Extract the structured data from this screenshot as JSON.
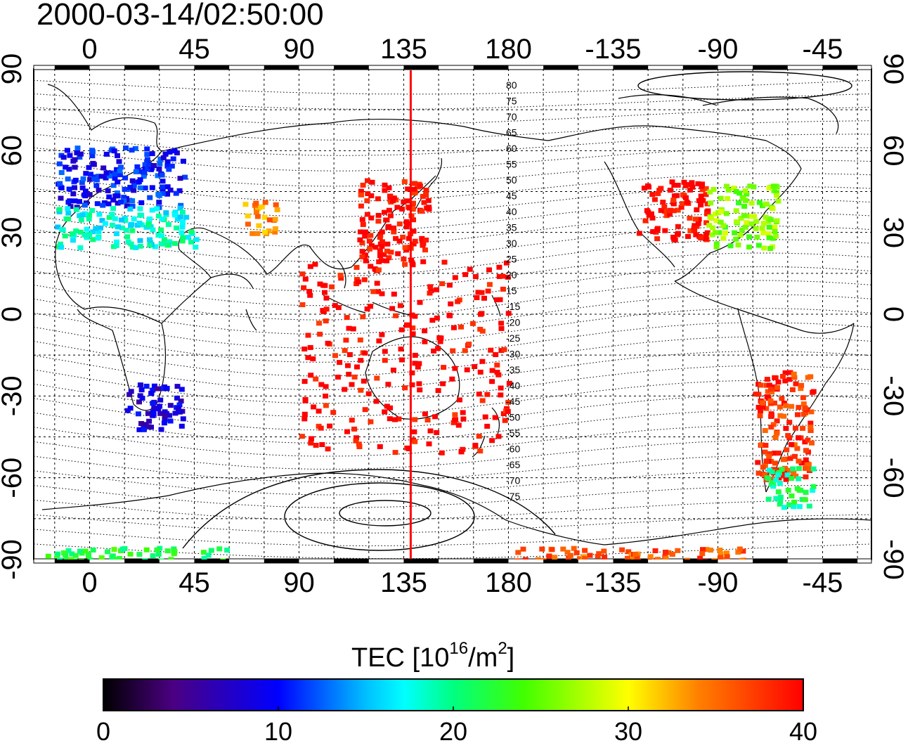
{
  "title": "2000-03-14/02:50:00",
  "axes": {
    "top_ticks": [
      "0",
      "45",
      "90",
      "135",
      "180",
      "-135",
      "-90",
      "-45"
    ],
    "bottom_ticks": [
      "0",
      "45",
      "90",
      "135",
      "180",
      "-135",
      "-90",
      "-45"
    ],
    "left_ticks": [
      "90",
      "60",
      "30",
      "0",
      "-30",
      "-60",
      "-90"
    ],
    "right_ticks": [
      "90",
      "60",
      "30",
      "0",
      "-30",
      "-60",
      "-90"
    ]
  },
  "contour_labels": [
    "80",
    "75",
    "70",
    "65",
    "60",
    "55",
    "50",
    "45",
    "40",
    "35",
    "30",
    "25",
    "20",
    "15",
    "-15",
    "-20",
    "-25",
    "-30",
    "-35",
    "-40",
    "-45",
    "-50",
    "-55",
    "-60",
    "-65",
    "-70",
    "-75"
  ],
  "colorbar": {
    "label": "TEC  [10",
    "label_sup1": "16",
    "label_mid": "/m",
    "label_sup2": "2",
    "label_end": "]",
    "min": 0,
    "max": 40,
    "ticks": [
      "0",
      "10",
      "20",
      "30",
      "40"
    ]
  },
  "chart_data": {
    "type": "heatmap",
    "title": "2000-03-14/02:50:00",
    "x_range": [
      -24,
      336
    ],
    "y_range": [
      -90,
      90
    ],
    "marker_longitude": 138,
    "value_range": [
      0,
      40
    ],
    "regions": [
      {
        "lon": [
          -15,
          40
        ],
        "lat": [
          40,
          62
        ],
        "value": 10
      },
      {
        "lon": [
          -15,
          45
        ],
        "lat": [
          25,
          40
        ],
        "value": 18
      },
      {
        "lon": [
          15,
          40
        ],
        "lat": [
          -42,
          -25
        ],
        "value": 8
      },
      {
        "lon": [
          65,
          80
        ],
        "lat": [
          30,
          42
        ],
        "value": 34
      },
      {
        "lon": [
          115,
          145
        ],
        "lat": [
          20,
          50
        ],
        "value": 40
      },
      {
        "lon": [
          90,
          180
        ],
        "lat": [
          -50,
          20
        ],
        "value": 40
      },
      {
        "lon": [
          -125,
          -95
        ],
        "lat": [
          28,
          50
        ],
        "value": 40
      },
      {
        "lon": [
          -95,
          -65
        ],
        "lat": [
          25,
          48
        ],
        "value": 26
      },
      {
        "lon": [
          -75,
          -50
        ],
        "lat": [
          -60,
          -20
        ],
        "value": 38
      },
      {
        "lon": [
          -70,
          -50
        ],
        "lat": [
          -70,
          -55
        ],
        "value": 20
      },
      {
        "lon": [
          -180,
          -80
        ],
        "lat": [
          -90,
          -85
        ],
        "value": 36
      },
      {
        "lon": [
          -20,
          60
        ],
        "lat": [
          -90,
          -85
        ],
        "value": 22
      }
    ]
  }
}
